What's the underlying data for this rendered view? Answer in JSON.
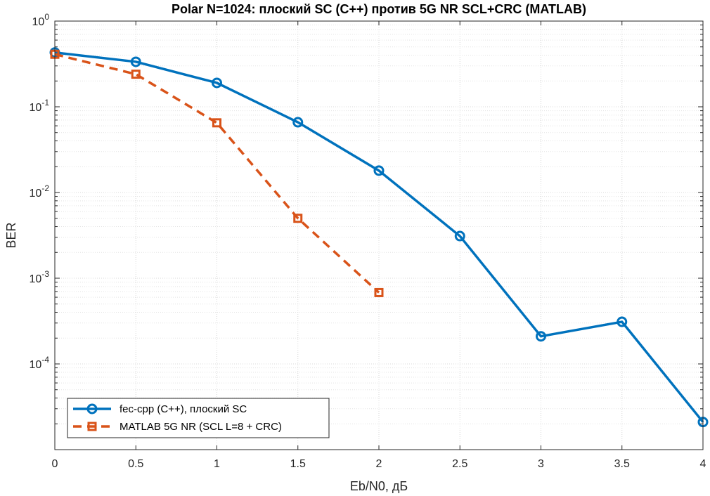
{
  "chart_data": {
    "type": "line",
    "title": "Polar N=1024: плоский SC (C++) против 5G NR SCL+CRC (MATLAB)",
    "xlabel": "Eb/N0, дБ",
    "ylabel": "BER",
    "x_scale": "linear",
    "y_scale": "log",
    "xlim": [
      0,
      4
    ],
    "ylim": [
      1e-05,
      1
    ],
    "grid": true,
    "minor_grid": true,
    "legend_position": "bottom-left",
    "x_ticks": [
      {
        "value": 0,
        "label": "0"
      },
      {
        "value": 0.5,
        "label": "0.5"
      },
      {
        "value": 1,
        "label": "1"
      },
      {
        "value": 1.5,
        "label": "1.5"
      },
      {
        "value": 2,
        "label": "2"
      },
      {
        "value": 2.5,
        "label": "2.5"
      },
      {
        "value": 3,
        "label": "3"
      },
      {
        "value": 3.5,
        "label": "3.5"
      },
      {
        "value": 4,
        "label": "4"
      }
    ],
    "y_ticks": [
      {
        "value": 1,
        "base": "10",
        "exp": "0"
      },
      {
        "value": 0.1,
        "base": "10",
        "exp": "-1"
      },
      {
        "value": 0.01,
        "base": "10",
        "exp": "-2"
      },
      {
        "value": 0.001,
        "base": "10",
        "exp": "-3"
      },
      {
        "value": 0.0001,
        "base": "10",
        "exp": "-4"
      }
    ],
    "series": [
      {
        "name": "fec-cpp (C++), плоский SC",
        "color": "#0072BD",
        "line_style": "solid",
        "marker": "circle",
        "x": [
          0,
          0.5,
          1,
          1.5,
          2,
          2.5,
          3,
          3.5,
          4
        ],
        "y": [
          0.43,
          0.335,
          0.19,
          0.066,
          0.018,
          0.0031,
          0.00021,
          0.00031,
          2.1e-05
        ]
      },
      {
        "name": "MATLAB 5G NR (SCL L=8 + CRC)",
        "color": "#D95319",
        "line_style": "dashed",
        "marker": "square",
        "x": [
          0,
          0.5,
          1,
          1.5,
          2
        ],
        "y": [
          0.41,
          0.24,
          0.065,
          0.005,
          0.00068
        ]
      }
    ]
  }
}
